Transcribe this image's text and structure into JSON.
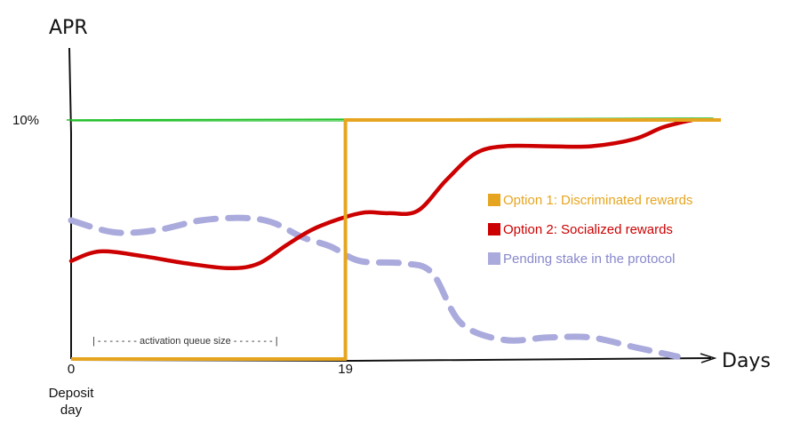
{
  "chart_data": {
    "type": "line",
    "title": "",
    "ylabel": "APR",
    "xlabel": "Days",
    "ylim": [
      0,
      10
    ],
    "xlim": [
      0,
      45
    ],
    "y_ticks": [
      {
        "value": 10,
        "label": "10%"
      }
    ],
    "x_ticks": [
      {
        "value": 0,
        "label": "0",
        "sublabel": "Deposit day"
      },
      {
        "value": 19,
        "label": "19",
        "sublabel": ""
      }
    ],
    "reference_line": {
      "value": 10,
      "color": "#22c02a"
    },
    "legend_placement": "right",
    "series": [
      {
        "name": "Option 1: Discriminated rewards",
        "color": "#e6a520",
        "style": "solid",
        "x": [
          0,
          19,
          19,
          45
        ],
        "y": [
          0,
          0,
          10,
          10
        ]
      },
      {
        "name": "Option 2: Socialized rewards",
        "color": "#cc0000",
        "style": "solid",
        "x": [
          0,
          2,
          5,
          8,
          11,
          13,
          15,
          17,
          20,
          22,
          24,
          26,
          28,
          30,
          33,
          36,
          39,
          41,
          43
        ],
        "y": [
          4.1,
          4.5,
          4.3,
          4.0,
          3.8,
          4.0,
          4.8,
          5.5,
          6.1,
          6.1,
          6.2,
          7.5,
          8.6,
          8.9,
          8.9,
          8.9,
          9.2,
          9.7,
          10.0
        ]
      },
      {
        "name": "Pending stake in the protocol",
        "color": "#aaaadd",
        "style": "dashed",
        "x": [
          0,
          3,
          6,
          9,
          12,
          14,
          16,
          18,
          20,
          23,
          25,
          27,
          30,
          33,
          36,
          39,
          42
        ],
        "y": [
          5.8,
          5.3,
          5.4,
          5.8,
          5.9,
          5.7,
          5.1,
          4.7,
          4.1,
          4.0,
          3.6,
          1.5,
          0.8,
          0.9,
          0.9,
          0.5,
          0.1
        ]
      }
    ],
    "annotations": [
      {
        "text": "| - - - - - - -  activation queue size - - - -  - - - |",
        "x_from": 0,
        "x_to": 19
      }
    ]
  }
}
